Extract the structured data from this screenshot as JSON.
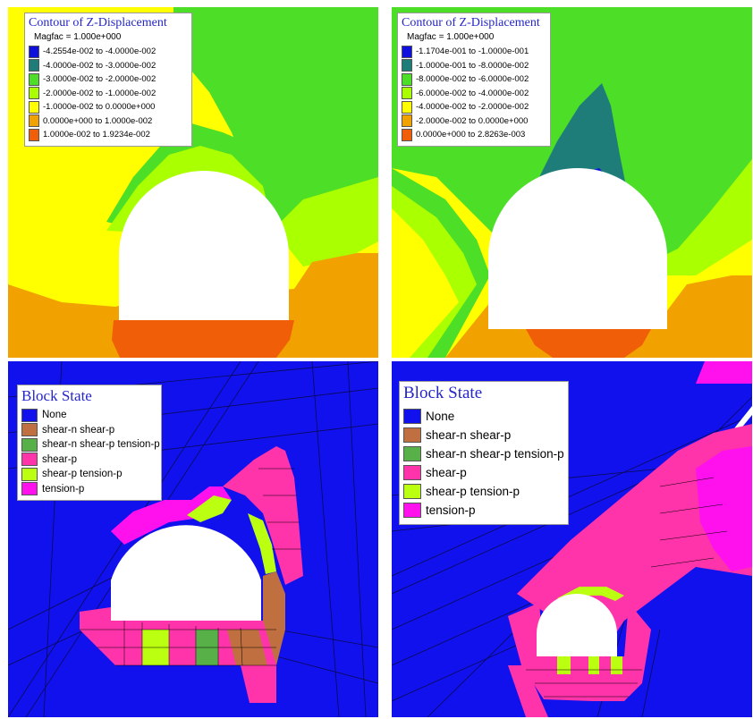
{
  "colors": {
    "contour_yellow": "#ffff00",
    "contour_yellowgreen": "#aaff00",
    "contour_green": "#4dde28",
    "contour_teal": "#1e7d78",
    "contour_blue": "#1010dd",
    "contour_orange": "#f2a200",
    "contour_darkorange": "#f05e08",
    "block_none": "#1111ee",
    "block_shear_n_shear_p": "#c07040",
    "block_shear_n_shear_p_tension_p": "#58b048",
    "block_shear_p": "#ff33aa",
    "block_shear_p_tension_p": "#bbff11",
    "block_tension_p": "#ff11ee",
    "mesh_line": "#0a0a55",
    "legend_title": "#2525c8"
  },
  "contour_top_left": {
    "title": "Contour of Z-Displacement",
    "magfac": "Magfac = 1.000e+000",
    "items": [
      {
        "label": "-4.2554e-002 to -4.0000e-002",
        "color": "#1010dd"
      },
      {
        "label": "-4.0000e-002 to -3.0000e-002",
        "color": "#1e7d78"
      },
      {
        "label": "-3.0000e-002 to -2.0000e-002",
        "color": "#4dde28"
      },
      {
        "label": "-2.0000e-002 to -1.0000e-002",
        "color": "#aaff00"
      },
      {
        "label": "-1.0000e-002 to  0.0000e+000",
        "color": "#ffff00"
      },
      {
        "label": "0.0000e+000 to  1.0000e-002",
        "color": "#f2a200"
      },
      {
        "label": "1.0000e-002 to  1.9234e-002",
        "color": "#f05e08"
      }
    ]
  },
  "contour_top_right": {
    "title": "Contour of Z-Displacement",
    "magfac": "Magfac = 1.000e+000",
    "items": [
      {
        "label": "-1.1704e-001 to -1.0000e-001",
        "color": "#1010dd"
      },
      {
        "label": "-1.0000e-001 to -8.0000e-002",
        "color": "#1e7d78"
      },
      {
        "label": "-8.0000e-002 to -6.0000e-002",
        "color": "#4dde28"
      },
      {
        "label": "-6.0000e-002 to -4.0000e-002",
        "color": "#aaff00"
      },
      {
        "label": "-4.0000e-002 to -2.0000e-002",
        "color": "#ffff00"
      },
      {
        "label": "-2.0000e-002 to  0.0000e+000",
        "color": "#f2a200"
      },
      {
        "label": "0.0000e+000 to  2.8263e-003",
        "color": "#f05e08"
      }
    ]
  },
  "block_state_bottom_left": {
    "title": "Block State",
    "items": [
      {
        "label": "None",
        "color": "#1111ee"
      },
      {
        "label": "shear-n shear-p",
        "color": "#c07040"
      },
      {
        "label": "shear-n shear-p tension-p",
        "color": "#58b048"
      },
      {
        "label": "shear-p",
        "color": "#ff33aa"
      },
      {
        "label": "shear-p tension-p",
        "color": "#bbff11"
      },
      {
        "label": "tension-p",
        "color": "#ff11ee"
      }
    ]
  },
  "block_state_bottom_right": {
    "title": "Block State",
    "items": [
      {
        "label": "None",
        "color": "#1111ee"
      },
      {
        "label": "shear-n shear-p",
        "color": "#c07040"
      },
      {
        "label": "shear-n shear-p tension-p",
        "color": "#58b048"
      },
      {
        "label": "shear-p",
        "color": "#ff33aa"
      },
      {
        "label": "shear-p tension-p",
        "color": "#bbff11"
      },
      {
        "label": "tension-p",
        "color": "#ff11ee"
      }
    ]
  }
}
